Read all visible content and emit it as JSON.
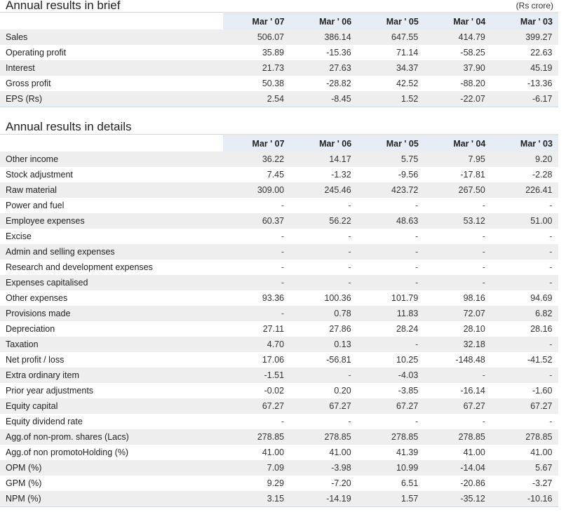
{
  "brief": {
    "title": "Annual results in brief",
    "unit": "(Rs crore)",
    "columns": [
      "Mar ' 07",
      "Mar ' 06",
      "Mar ' 05",
      "Mar ' 04",
      "Mar ' 03"
    ],
    "rows": [
      {
        "label": "Sales",
        "values": [
          "506.07",
          "386.14",
          "647.55",
          "414.79",
          "399.27"
        ]
      },
      {
        "label": "Operating profit",
        "values": [
          "35.89",
          "-15.36",
          "71.14",
          "-58.25",
          "22.63"
        ]
      },
      {
        "label": "Interest",
        "values": [
          "21.73",
          "27.63",
          "34.37",
          "37.90",
          "45.19"
        ]
      },
      {
        "label": "Gross profit",
        "values": [
          "50.38",
          "-28.82",
          "42.52",
          "-88.20",
          "-13.36"
        ]
      },
      {
        "label": "EPS (Rs)",
        "values": [
          "2.54",
          "-8.45",
          "1.52",
          "-22.07",
          "-6.17"
        ]
      }
    ]
  },
  "details": {
    "title": "Annual results in details",
    "columns": [
      "Mar ' 07",
      "Mar ' 06",
      "Mar ' 05",
      "Mar ' 04",
      "Mar ' 03"
    ],
    "rows": [
      {
        "label": "Other income",
        "values": [
          "36.22",
          "14.17",
          "5.75",
          "7.95",
          "9.20"
        ]
      },
      {
        "label": "Stock adjustment",
        "values": [
          "7.45",
          "-1.32",
          "-9.56",
          "-17.81",
          "-2.28"
        ]
      },
      {
        "label": "Raw material",
        "values": [
          "309.00",
          "245.46",
          "423.72",
          "267.50",
          "226.41"
        ]
      },
      {
        "label": "Power and fuel",
        "values": [
          "-",
          "-",
          "-",
          "-",
          "-"
        ]
      },
      {
        "label": "Employee expenses",
        "values": [
          "60.37",
          "56.22",
          "48.63",
          "53.12",
          "51.00"
        ]
      },
      {
        "label": "Excise",
        "values": [
          "-",
          "-",
          "-",
          "-",
          "-"
        ]
      },
      {
        "label": "Admin and selling expenses",
        "values": [
          "-",
          "-",
          "-",
          "-",
          "-"
        ]
      },
      {
        "label": "Research and development expenses",
        "values": [
          "-",
          "-",
          "-",
          "-",
          "-"
        ]
      },
      {
        "label": "Expenses capitalised",
        "values": [
          "-",
          "-",
          "-",
          "-",
          "-"
        ]
      },
      {
        "label": "Other expenses",
        "values": [
          "93.36",
          "100.36",
          "101.79",
          "98.16",
          "94.69"
        ]
      },
      {
        "label": "Provisions made",
        "values": [
          "-",
          "0.78",
          "11.83",
          "72.07",
          "6.82"
        ]
      },
      {
        "label": "Depreciation",
        "values": [
          "27.11",
          "27.86",
          "28.24",
          "28.10",
          "28.16"
        ]
      },
      {
        "label": "Taxation",
        "values": [
          "4.70",
          "0.13",
          "-",
          "32.18",
          "-"
        ]
      },
      {
        "label": "Net profit / loss",
        "values": [
          "17.06",
          "-56.81",
          "10.25",
          "-148.48",
          "-41.52"
        ]
      },
      {
        "label": "Extra ordinary item",
        "values": [
          "-1.51",
          "-",
          "-4.03",
          "-",
          "-"
        ]
      },
      {
        "label": "Prior year adjustments",
        "values": [
          "-0.02",
          "0.20",
          "-3.85",
          "-16.14",
          "-1.60"
        ]
      },
      {
        "label": "Equity capital",
        "values": [
          "67.27",
          "67.27",
          "67.27",
          "67.27",
          "67.27"
        ]
      },
      {
        "label": "Equity dividend rate",
        "values": [
          "-",
          "-",
          "-",
          "-",
          "-"
        ]
      },
      {
        "label": "Agg.of non-prom. shares (Lacs)",
        "values": [
          "278.85",
          "278.85",
          "278.85",
          "278.85",
          "278.85"
        ]
      },
      {
        "label": "Agg.of non promotoHolding (%)",
        "values": [
          "41.00",
          "41.00",
          "41.39",
          "41.00",
          "41.00"
        ]
      },
      {
        "label": "OPM (%)",
        "values": [
          "7.09",
          "-3.98",
          "10.99",
          "-14.04",
          "5.67"
        ]
      },
      {
        "label": "GPM (%)",
        "values": [
          "9.29",
          "-7.20",
          "6.51",
          "-20.86",
          "-3.27"
        ]
      },
      {
        "label": "NPM (%)",
        "values": [
          "3.15",
          "-14.19",
          "1.57",
          "-35.12",
          "-10.16"
        ]
      }
    ]
  }
}
